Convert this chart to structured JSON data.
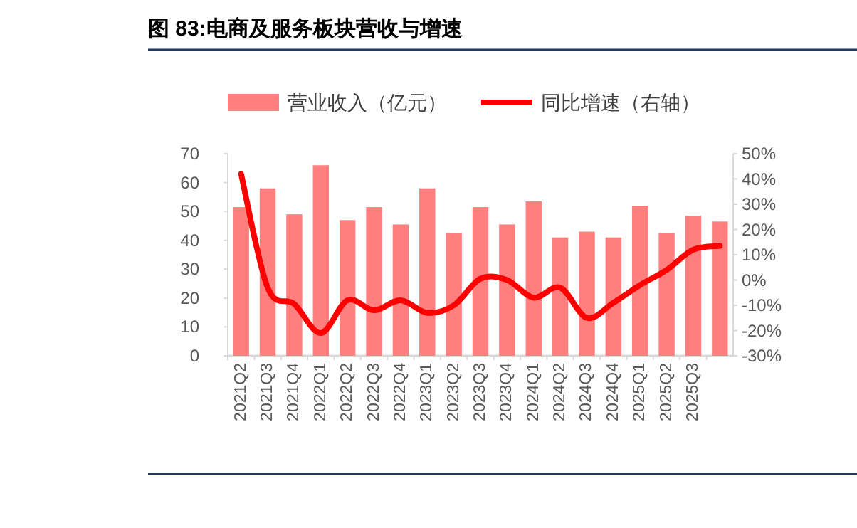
{
  "chart_data": {
    "type": "bar",
    "title": "图 83:电商及服务板块营收与增速",
    "categories": [
      "2021Q2",
      "2021Q3",
      "2021Q4",
      "2022Q1",
      "2022Q2",
      "2022Q3",
      "2022Q4",
      "2023Q1",
      "2023Q2",
      "2023Q3",
      "2023Q4",
      "2024Q1",
      "2024Q2",
      "2024Q3",
      "2024Q4",
      "2025Q1",
      "2025Q2",
      "2025Q3",
      null
    ],
    "series": [
      {
        "name": "营业收入（亿元）",
        "color": "#ff7f7f",
        "values": [
          51.5,
          58,
          49,
          66,
          47,
          51.5,
          45.5,
          58,
          42.5,
          51.5,
          45.5,
          53.5,
          41,
          43,
          41,
          52,
          42.5,
          48.5,
          46.5
        ]
      },
      {
        "name": "同比增速（右轴）",
        "type": "line",
        "axis": "y2",
        "color": "#ff0000",
        "values": [
          42,
          -3,
          -9.5,
          -21,
          -8,
          -12,
          -8,
          -13,
          -10,
          0.5,
          0,
          -7,
          -3,
          -15,
          -9,
          -2,
          4,
          12,
          13.5
        ]
      }
    ],
    "ylim": [
      0,
      70
    ],
    "yticks": [
      0,
      10,
      20,
      30,
      40,
      50,
      60,
      70
    ],
    "y2lim": [
      -30,
      50
    ],
    "y2ticks": [
      {
        "value": -30,
        "label": "-30%"
      },
      {
        "value": -20,
        "label": "-20%"
      },
      {
        "value": -10,
        "label": "-10%"
      },
      {
        "value": 0,
        "label": "0%"
      },
      {
        "value": 10,
        "label": "10%"
      },
      {
        "value": 20,
        "label": "20%"
      },
      {
        "value": 30,
        "label": "30%"
      },
      {
        "value": 40,
        "label": "40%"
      },
      {
        "value": 50,
        "label": "50%"
      }
    ],
    "legend": "top",
    "grid": false
  }
}
